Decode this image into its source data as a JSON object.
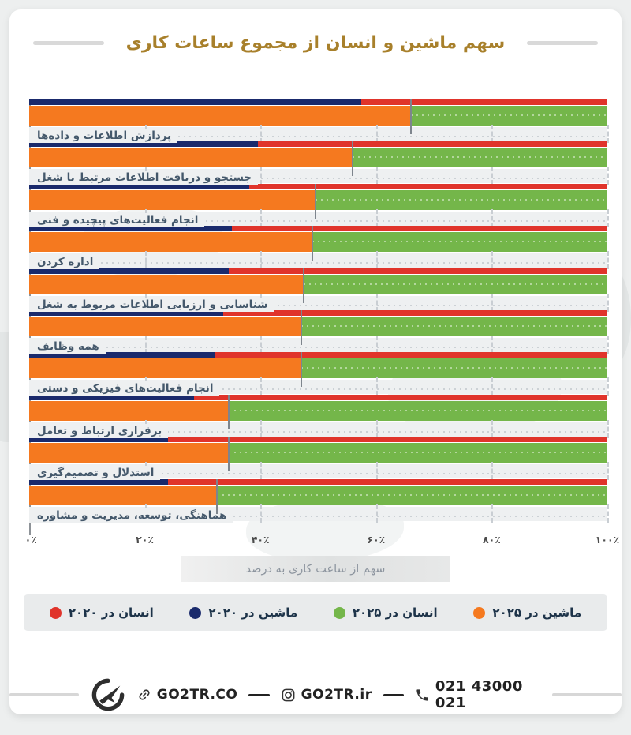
{
  "page": {
    "title": "سهم ماشین و انسان از مجموع ساعات کاری"
  },
  "chart_data": {
    "type": "bar",
    "orientation": "horizontal-stacked-grouped",
    "title": "سهم ماشین و انسان از مجموع ساعات کاری",
    "xlabel": "سهم از ساعت کاری به درصد",
    "xlim": [
      0,
      100
    ],
    "x_ticks": [
      "۰٪",
      "۲۰٪",
      "۴۰٪",
      "۶۰٪",
      "۸۰٪",
      "۱۰۰٪"
    ],
    "grid": "vertical-dashed",
    "legend_position": "bottom",
    "categories": [
      "پردازش اطلاعات و داده‌ها",
      "جستجو و دریافت اطلاعات مرتبط با شغل",
      "انجام فعالیت‌های پیچیده و فنی",
      "اداره کردن",
      "شناسایی و ارزیابی اطلاعات مربوط به شغل",
      "همه وظایف",
      "انجام فعالیت‌های فیزیکی و دستی",
      "برقراری ارتباط و تعامل",
      "استدلال و تصمیم‌گیری",
      "هماهنگی، توسعه، مدیریت و مشاوره"
    ],
    "series": [
      {
        "name": "ماشین در ۲۰۲۵",
        "color": "#f5791f",
        "values": [
          66,
          56,
          49.5,
          49,
          47.5,
          47,
          47,
          34.5,
          34.5,
          32.5
        ]
      },
      {
        "name": "انسان در ۲۰۲۵",
        "color": "#74b64a",
        "values": [
          34,
          44,
          50.5,
          51,
          52.5,
          53,
          53,
          65.5,
          65.5,
          67.5
        ]
      },
      {
        "name": "ماشین در ۲۰۲۰",
        "color": "#1a2a6c",
        "values": [
          57.5,
          39.5,
          38,
          35,
          34.5,
          33.5,
          32,
          28.5,
          24,
          24
        ]
      },
      {
        "name": "انسان در ۲۰۲۰",
        "color": "#e0342b",
        "values": [
          42.5,
          60.5,
          62,
          65,
          65.5,
          66.5,
          68,
          71.5,
          76,
          76
        ]
      }
    ]
  },
  "legend": {
    "items": [
      {
        "label": "ماشین در ۲۰۲۵",
        "color": "#f5791f"
      },
      {
        "label": "انسان در ۲۰۲۵",
        "color": "#74b64a"
      },
      {
        "label": "ماشین در ۲۰۲۰",
        "color": "#1a2a6c"
      },
      {
        "label": "انسان در ۲۰۲۰",
        "color": "#e0342b"
      }
    ]
  },
  "footer": {
    "website": "GO2TR.CO",
    "instagram": "GO2TR.ir",
    "phone": "021 43000 021"
  },
  "colors": {
    "title_gold": "#a8802b",
    "machine_2025": "#f5791f",
    "human_2025": "#74b64a",
    "machine_2020": "#1a2a6c",
    "human_2020": "#e0342b",
    "strip_bg": "#eef0f1",
    "grid_dash": "#c9ced3"
  }
}
